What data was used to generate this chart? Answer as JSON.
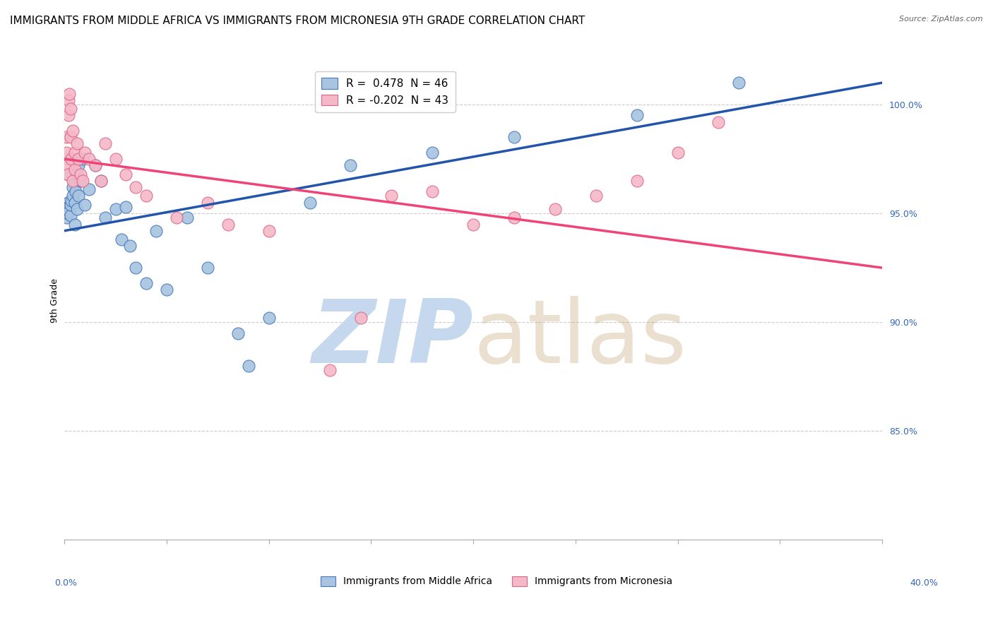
{
  "title": "IMMIGRANTS FROM MIDDLE AFRICA VS IMMIGRANTS FROM MICRONESIA 9TH GRADE CORRELATION CHART",
  "source": "Source: ZipAtlas.com",
  "ylabel": "9th Grade",
  "r_blue": 0.478,
  "n_blue": 46,
  "r_pink": -0.202,
  "n_pink": 43,
  "legend_blue": "Immigrants from Middle Africa",
  "legend_pink": "Immigrants from Micronesia",
  "xlim": [
    0.0,
    40.0
  ],
  "ylim": [
    80.0,
    102.0
  ],
  "yticks": [
    85.0,
    90.0,
    95.0,
    100.0
  ],
  "blue_scatter_x": [
    0.1,
    0.1,
    0.15,
    0.15,
    0.2,
    0.2,
    0.25,
    0.3,
    0.3,
    0.35,
    0.4,
    0.4,
    0.5,
    0.5,
    0.5,
    0.55,
    0.6,
    0.6,
    0.7,
    0.7,
    0.8,
    0.9,
    1.0,
    1.2,
    1.5,
    1.8,
    2.0,
    2.5,
    2.8,
    3.0,
    3.2,
    3.5,
    4.0,
    4.5,
    5.0,
    6.0,
    7.0,
    8.5,
    9.0,
    10.0,
    12.0,
    14.0,
    18.0,
    22.0,
    28.0,
    33.0
  ],
  "blue_scatter_y": [
    95.2,
    94.8,
    95.5,
    95.0,
    96.8,
    95.3,
    95.1,
    94.9,
    95.4,
    95.6,
    96.2,
    95.8,
    96.5,
    95.5,
    94.5,
    96.0,
    96.8,
    95.2,
    97.2,
    95.8,
    96.5,
    97.5,
    95.4,
    96.1,
    97.2,
    96.5,
    94.8,
    95.2,
    93.8,
    95.3,
    93.5,
    92.5,
    91.8,
    94.2,
    91.5,
    94.8,
    92.5,
    89.5,
    88.0,
    90.2,
    95.5,
    97.2,
    97.8,
    98.5,
    99.5,
    101.0
  ],
  "pink_scatter_x": [
    0.05,
    0.1,
    0.1,
    0.15,
    0.15,
    0.2,
    0.2,
    0.25,
    0.3,
    0.3,
    0.35,
    0.4,
    0.4,
    0.5,
    0.5,
    0.6,
    0.7,
    0.8,
    0.9,
    1.0,
    1.2,
    1.5,
    1.8,
    2.0,
    2.5,
    3.0,
    3.5,
    4.0,
    5.5,
    7.0,
    8.0,
    10.0,
    13.0,
    14.5,
    16.0,
    18.0,
    20.0,
    22.0,
    24.0,
    26.0,
    28.0,
    30.0,
    32.0
  ],
  "pink_scatter_y": [
    97.5,
    98.5,
    97.8,
    97.2,
    96.8,
    100.2,
    99.5,
    100.5,
    99.8,
    98.5,
    97.5,
    98.8,
    96.5,
    97.8,
    97.0,
    98.2,
    97.5,
    96.8,
    96.5,
    97.8,
    97.5,
    97.2,
    96.5,
    98.2,
    97.5,
    96.8,
    96.2,
    95.8,
    94.8,
    95.5,
    94.5,
    94.2,
    87.8,
    90.2,
    95.8,
    96.0,
    94.5,
    94.8,
    95.2,
    95.8,
    96.5,
    97.8,
    99.2
  ],
  "blue_color": "#a8c4e0",
  "pink_color": "#f5b8c8",
  "blue_line_color": "#2255aa",
  "pink_line_color": "#ee4477",
  "blue_edge_color": "#4477bb",
  "pink_edge_color": "#dd6688",
  "grid_color": "#cccccc",
  "background_color": "#ffffff",
  "title_fontsize": 11,
  "axis_label_fontsize": 9,
  "tick_fontsize": 9,
  "legend_fontsize": 11,
  "blue_trend_x0": 0.0,
  "blue_trend_y0": 94.2,
  "blue_trend_x1": 40.0,
  "blue_trend_y1": 101.0,
  "pink_trend_x0": 0.0,
  "pink_trend_y0": 97.5,
  "pink_trend_x1": 40.0,
  "pink_trend_y1": 92.5
}
